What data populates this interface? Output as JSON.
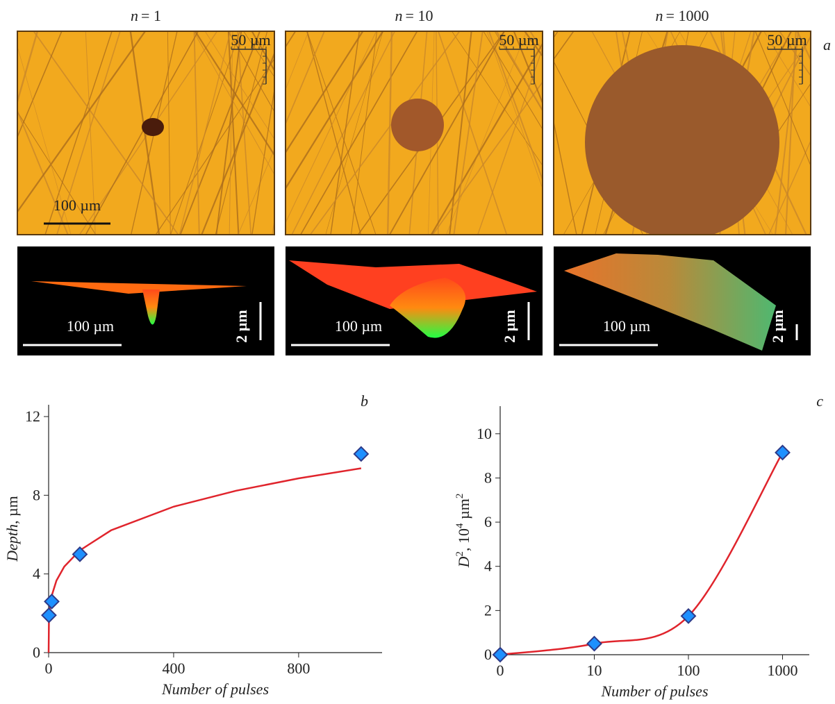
{
  "panel_a": {
    "label": "a",
    "columns": [
      {
        "var": "n",
        "eq": "= 1",
        "scale_small": "50 µm",
        "scale_large": "100 µm",
        "profile_width": "100 µm",
        "profile_height": "2 µm"
      },
      {
        "var": "n",
        "eq": "= 10",
        "scale_small": "50 µm",
        "profile_width": "100 µm",
        "profile_height": "2 µm"
      },
      {
        "var": "n",
        "eq": "= 1000",
        "scale_small": "50 µm",
        "profile_width": "100 µm",
        "profile_height": "2 µm"
      }
    ]
  },
  "chart_data": [
    {
      "type": "scatter",
      "panel_label": "b",
      "x": [
        1,
        10,
        100,
        1000
      ],
      "values": [
        1.9,
        2.6,
        5.0,
        10.1
      ],
      "fit_x": [
        0,
        1,
        5,
        10,
        25,
        50,
        100,
        200,
        400,
        600,
        800,
        1000
      ],
      "fit_values": [
        0,
        1.61,
        2.43,
        2.9,
        3.66,
        4.37,
        5.2,
        6.22,
        7.42,
        8.23,
        8.86,
        9.37
      ],
      "xlabel": "Number of pulses",
      "ylabel_var": "Depth",
      "ylabel_unit": ", µm",
      "xlim": [
        0,
        1067
      ],
      "ylim": [
        0,
        12.6
      ],
      "xticks": [
        0,
        400,
        800
      ],
      "yticks": [
        0,
        4,
        8,
        12
      ],
      "color": "#1e90ff",
      "edge_color": "#2e3a87",
      "fit_color": "#e0242c"
    },
    {
      "type": "scatter",
      "panel_label": "c",
      "categories": [
        "0",
        "10",
        "100",
        "1000"
      ],
      "values": [
        0,
        0.5,
        1.75,
        9.15
      ],
      "xlabel": "Number of pulses",
      "ylabel_parts": [
        "D",
        "2",
        ", 10",
        "4",
        " µm",
        "2"
      ],
      "ylim": [
        0,
        11.25
      ],
      "yticks": [
        0,
        2,
        4,
        6,
        8,
        10
      ],
      "color": "#1e90ff",
      "edge_color": "#2e3a87",
      "fit_color": "#e0242c"
    }
  ]
}
